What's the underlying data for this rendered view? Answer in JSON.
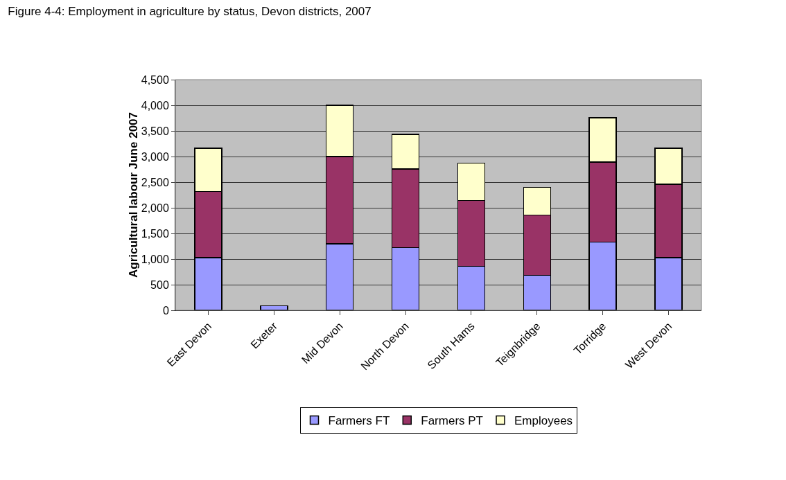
{
  "chart_data": {
    "type": "bar",
    "title": "Figure 4-4: Employment in agriculture by status, Devon districts, 2007",
    "ylabel": "Agricultural labour June 2007",
    "categories": [
      "East Devon",
      "Exeter",
      "Mid Devon",
      "North Devon",
      "South Hams",
      "Teignbridge",
      "Torridge",
      "West Devon"
    ],
    "series": [
      {
        "name": "Farmers FT",
        "color": "#9999ff",
        "values": [
          1030,
          90,
          1300,
          1220,
          860,
          680,
          1330,
          1030
        ]
      },
      {
        "name": "Farmers PT",
        "color": "#993366",
        "values": [
          1290,
          null,
          1700,
          1540,
          1280,
          1180,
          1560,
          1430
        ]
      },
      {
        "name": "Employees",
        "color": "#ffffcc",
        "values": [
          840,
          null,
          1000,
          670,
          730,
          540,
          870,
          700
        ]
      }
    ],
    "stacked": true,
    "ylim": [
      0,
      4500
    ],
    "yticks": [
      {
        "value": 0,
        "label": "0"
      },
      {
        "value": 500,
        "label": "500"
      },
      {
        "value": 1000,
        "label": "1,000"
      },
      {
        "value": 1500,
        "label": "1,500"
      },
      {
        "value": 2000,
        "label": "2,000"
      },
      {
        "value": 2500,
        "label": "2,500"
      },
      {
        "value": 3000,
        "label": "3,000"
      },
      {
        "value": 3500,
        "label": "3,500"
      },
      {
        "value": 4000,
        "label": "4,000"
      },
      {
        "value": 4500,
        "label": "4,500"
      }
    ],
    "grid": "y",
    "legend": "bottom"
  }
}
